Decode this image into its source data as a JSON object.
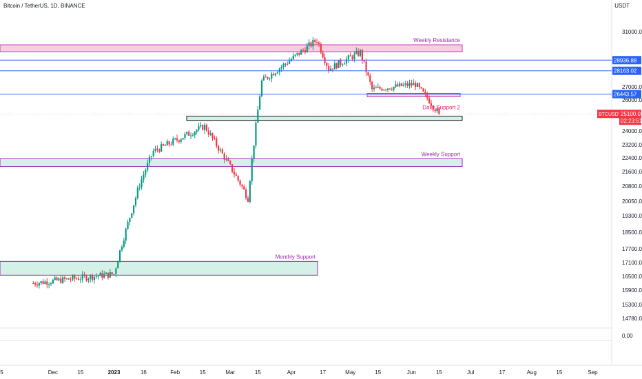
{
  "header": {
    "symbol_line": "Bitcoin / TetherUS, 1D, BINANCE",
    "unit": "USDT"
  },
  "colors": {
    "up": "#089981",
    "down": "#f23645",
    "resistance_fill": "#f8c6dc",
    "resistance_border": "#c33fb8",
    "support_fill": "#cbeee3",
    "support_border": "#9c27b0",
    "daily_border": "#131722",
    "hline": "#2962ff",
    "zone_label": "#9c27b0",
    "daily_label": "#e91e63",
    "axis_text": "#131722",
    "grid": "#e0e3eb"
  },
  "chart_data": {
    "type": "candlestick",
    "title": "Bitcoin / TetherUS, 1D, BINANCE",
    "y_unit": "USDT",
    "y_ticks": [
      "31000.00",
      "27000.00",
      "26000.00",
      "24000.00",
      "23200.00",
      "22400.00",
      "21600.00",
      "20800.00",
      "20050.00",
      "19300.00",
      "18500.00",
      "17700.00",
      "17100.00",
      "16500.00",
      "15900.00",
      "15300.00",
      "14780.00",
      "0.00"
    ],
    "x_ticks": [
      "5",
      "Dec",
      "15",
      "2023",
      "16",
      "Feb",
      "15",
      "Mar",
      "15",
      "Apr",
      "17",
      "May",
      "15",
      "Jun",
      "15",
      "Jul",
      "17",
      "Aug",
      "15",
      "Sep"
    ],
    "price_lines": [
      {
        "label": "28936.88",
        "value": 28936.88
      },
      {
        "label": "28163.02",
        "value": 28163.02
      },
      {
        "label": "26443.57",
        "value": 26443.57
      }
    ],
    "last_price": {
      "symbol": "BTCUSDT",
      "price": "25100.01",
      "countdown": "02:23:51"
    },
    "zones": [
      {
        "name": "Weekly Resistance",
        "low": 29550,
        "high": 30050,
        "kind": "resistance"
      },
      {
        "name": "Daily Support 2",
        "low": 24680,
        "high": 24950,
        "kind": "daily"
      },
      {
        "name": "Weekly Support",
        "low": 21900,
        "high": 22350,
        "kind": "support"
      },
      {
        "name": "Monthly Support",
        "low": 16550,
        "high": 17150,
        "kind": "support"
      }
    ],
    "key_closes": [
      {
        "date": "2022-11-21",
        "price": 16200
      },
      {
        "date": "2023-01-01",
        "price": 16600
      },
      {
        "date": "2023-01-14",
        "price": 20900
      },
      {
        "date": "2023-01-21",
        "price": 22800
      },
      {
        "date": "2023-02-16",
        "price": 24300
      },
      {
        "date": "2023-03-10",
        "price": 20200
      },
      {
        "date": "2023-03-17",
        "price": 27400
      },
      {
        "date": "2023-04-14",
        "price": 30400
      },
      {
        "date": "2023-04-20",
        "price": 28300
      },
      {
        "date": "2023-05-06",
        "price": 29500
      },
      {
        "date": "2023-05-12",
        "price": 26800
      },
      {
        "date": "2023-06-03",
        "price": 27200
      },
      {
        "date": "2023-06-15",
        "price": 25100
      }
    ]
  }
}
